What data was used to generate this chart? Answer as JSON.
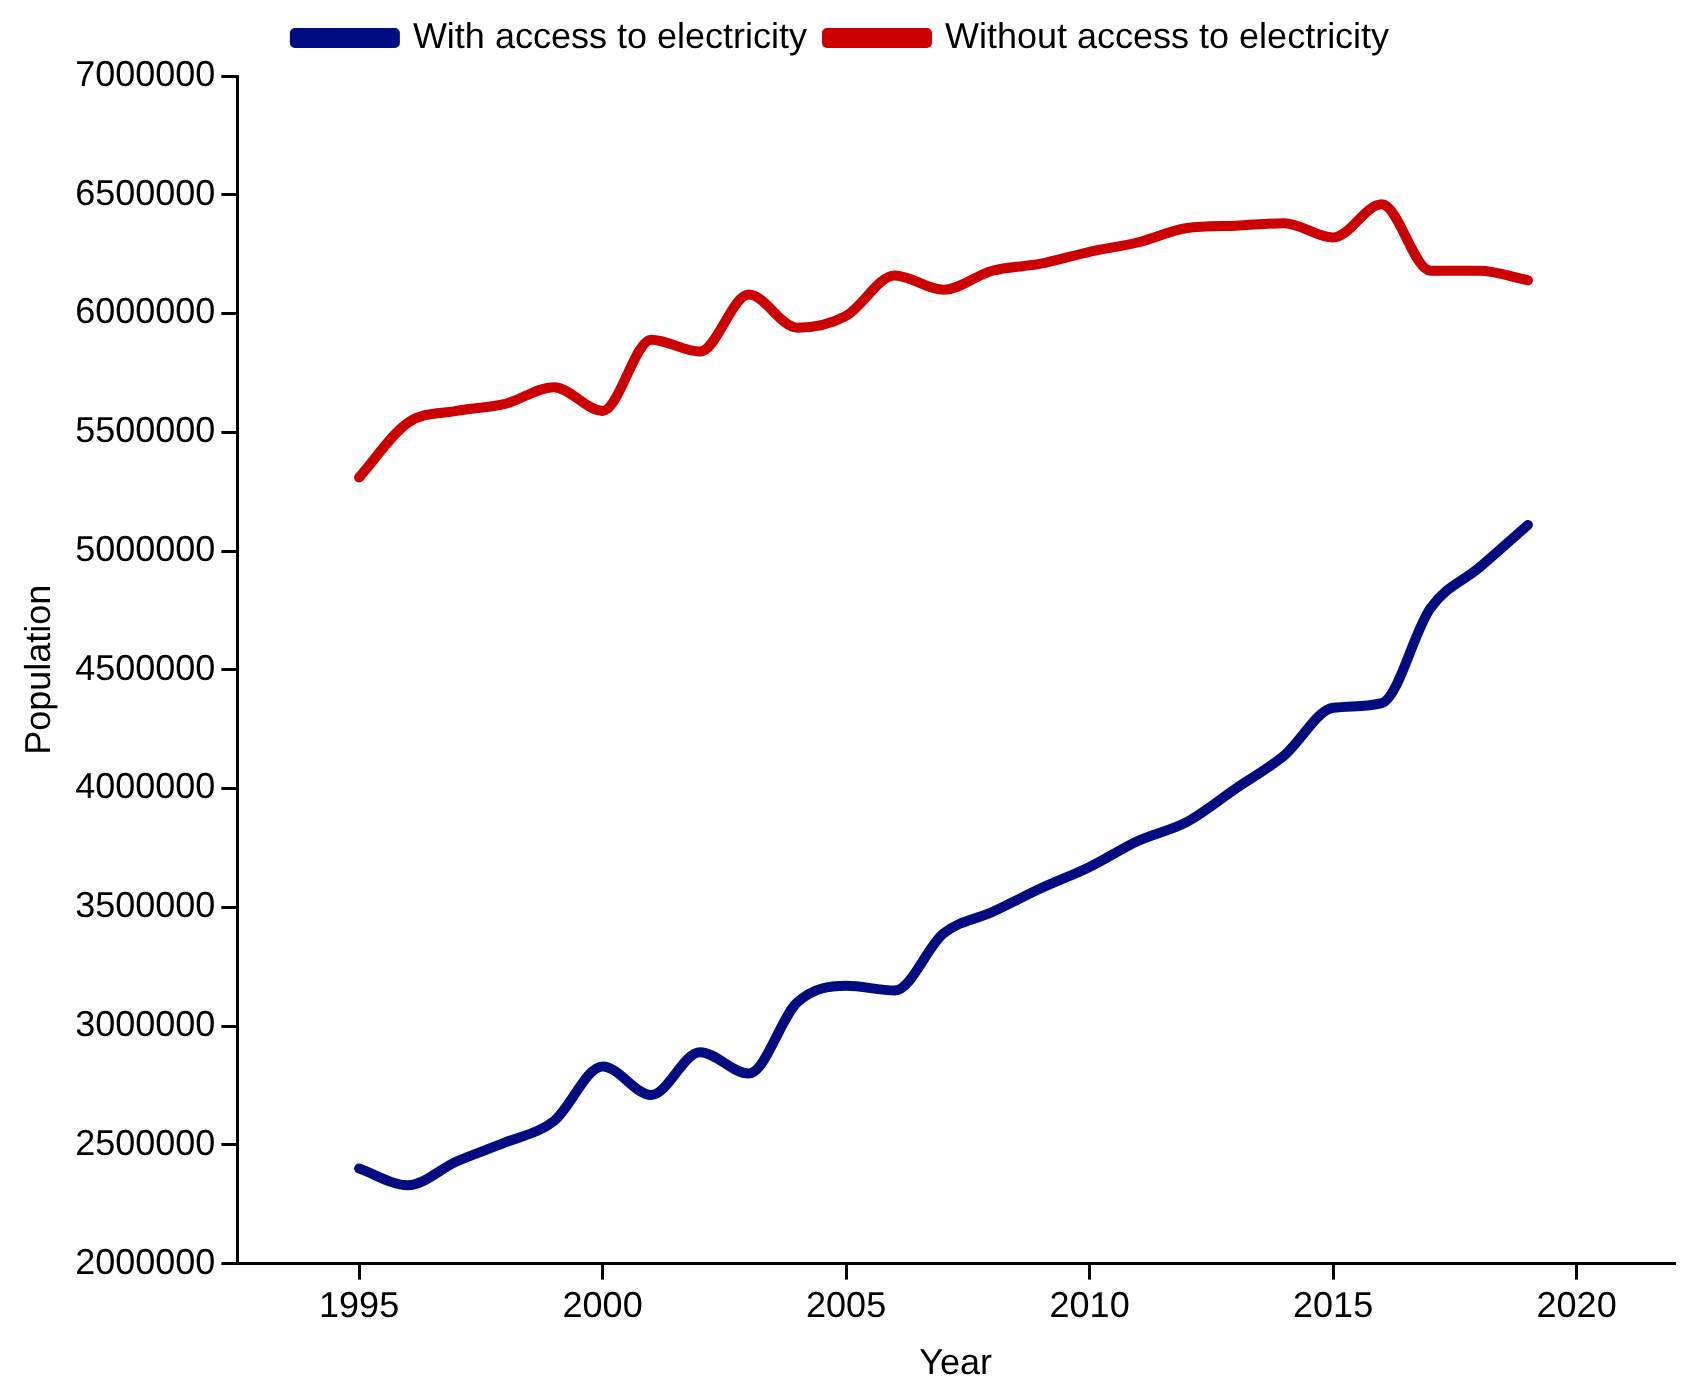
{
  "chart_data": {
    "type": "line",
    "xlabel": "Year",
    "ylabel": "Population",
    "x": [
      1995,
      1996,
      1997,
      1998,
      1999,
      2000,
      2001,
      2002,
      2003,
      2004,
      2005,
      2006,
      2007,
      2008,
      2009,
      2010,
      2011,
      2012,
      2013,
      2014,
      2015,
      2016,
      2017,
      2018,
      2019
    ],
    "series": [
      {
        "name": "With access to electricity",
        "color": "#000c80",
        "values": [
          2400000,
          2330000,
          2430000,
          2510000,
          2600000,
          2830000,
          2710000,
          2890000,
          2800000,
          3100000,
          3170000,
          3150000,
          3390000,
          3480000,
          3580000,
          3670000,
          3780000,
          3860000,
          4000000,
          4140000,
          4340000,
          4360000,
          4760000,
          4930000,
          5110000
        ]
      },
      {
        "name": "Without access to electricity",
        "color": "#cc0000",
        "values": [
          5310000,
          5540000,
          5590000,
          5620000,
          5690000,
          5590000,
          5890000,
          5840000,
          6080000,
          5940000,
          5990000,
          6160000,
          6100000,
          6180000,
          6210000,
          6260000,
          6300000,
          6360000,
          6370000,
          6380000,
          6320000,
          6460000,
          6180000,
          6180000,
          6140000
        ]
      }
    ],
    "xlim": [
      1992.5,
      2022
    ],
    "xticks": [
      1995,
      2000,
      2005,
      2010,
      2015,
      2020
    ],
    "ylim": [
      2000000,
      7000000
    ],
    "yticks": [
      2000000,
      2500000,
      3000000,
      3500000,
      4000000,
      4500000,
      5000000,
      5500000,
      6000000,
      6500000,
      7000000
    ],
    "grid": false,
    "legend": "top",
    "marker": "none",
    "line_style": "solid"
  }
}
